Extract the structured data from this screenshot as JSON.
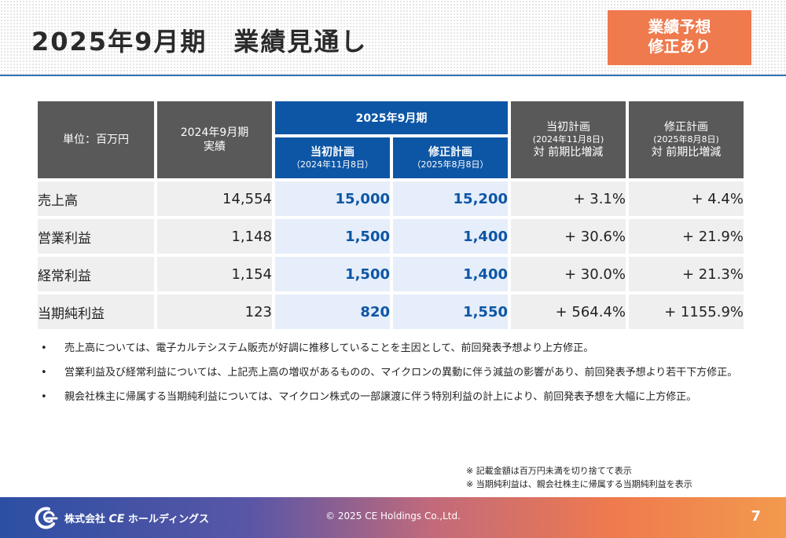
{
  "title": "2025年9月期　業績見通し",
  "badge": {
    "line1": "業績予想",
    "line2": "修正あり"
  },
  "table": {
    "header": {
      "unit": "単位：百万円",
      "prev_period_line1": "2024年9月期",
      "prev_period_line2": "実績",
      "current_period": "2025年9月期",
      "initial_plan": "当初計画",
      "initial_plan_date": "（2024年11月8日）",
      "revised_plan": "修正計画",
      "revised_plan_date": "（2025年8月8日）",
      "initial_change_line1": "当初計画",
      "initial_change_date": "(2024年11月8日)",
      "initial_change_line3": "対 前期比増減",
      "revised_change_line1": "修正計画",
      "revised_change_date": "(2025年8月8日)",
      "revised_change_line3": "対 前期比増減"
    },
    "rows": [
      {
        "label": "売上高",
        "actual": "14,554",
        "initial": "15,000",
        "revised": "15,200",
        "initial_change": "+ 3.1%",
        "revised_change": "+ 4.4%"
      },
      {
        "label": "営業利益",
        "actual": "1,148",
        "initial": "1,500",
        "revised": "1,400",
        "initial_change": "+ 30.6%",
        "revised_change": "+ 21.9%"
      },
      {
        "label": "経常利益",
        "actual": "1,154",
        "initial": "1,500",
        "revised": "1,400",
        "initial_change": "+ 30.0%",
        "revised_change": "+ 21.3%"
      },
      {
        "label": "当期純利益",
        "actual": "123",
        "initial": "820",
        "revised": "1,550",
        "initial_change": "+ 564.4%",
        "revised_change": "+ 1155.9%"
      }
    ]
  },
  "notes": [
    "売上高については、電子カルテシステム販売が好調に推移していることを主因として、前回発表予想より上方修正。",
    "営業利益及び経常利益については、上記売上高の増収があるものの、マイクロンの異動に伴う減益の影響があり、前回発表予想より若干下方修正。",
    "親会社株主に帰属する当期純利益については、マイクロン株式の一部譲渡に伴う特別利益の計上により、前回発表予想を大幅に上方修正。"
  ],
  "bullet": "•",
  "footnotes": [
    "※ 記載金額は百万円未満を切り捨てて表示",
    "※ 当期純利益は、親会社株主に帰属する当期純利益を表示"
  ],
  "footer": {
    "logo_prefix": "株式会社",
    "logo_ce": "CE",
    "logo_suffix": "ホールディングス",
    "copyright": "© 2025 CE Holdings Co.,Ltd.",
    "page_number": "7"
  },
  "colors": {
    "accent_blue": "#0d56a5",
    "badge_orange": "#ef7a4e",
    "header_gray": "#595959"
  }
}
